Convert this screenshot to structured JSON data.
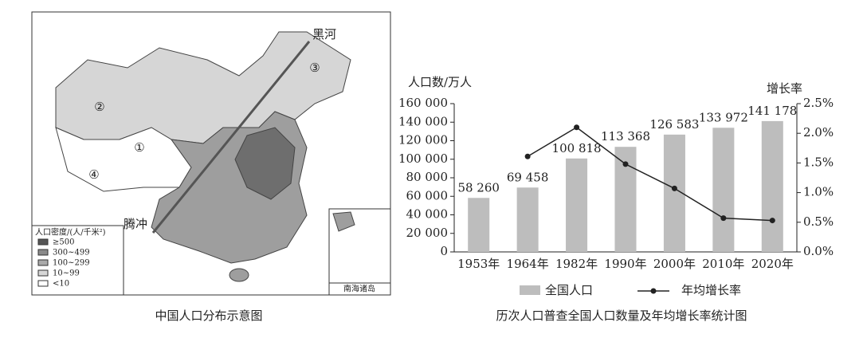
{
  "map": {
    "caption": "中国人口分布示意图",
    "place_north": "黑河",
    "place_south": "腾冲",
    "regions": [
      "①",
      "②",
      "③",
      "④"
    ],
    "legend_title": "人口密度/(人/千米²)",
    "legend_items": [
      "≥500",
      "300~499",
      "100~299",
      "10~99",
      "<10"
    ],
    "inset_label": "南海诸岛"
  },
  "chart_data": {
    "type": "bar",
    "title": "历次人口普查全国人口数量及年均增长率统计图",
    "y_label": "人口数/万人",
    "y2_label": "增长率",
    "categories": [
      "1953年",
      "1964年",
      "1982年",
      "1990年",
      "2000年",
      "2010年",
      "2020年"
    ],
    "series": [
      {
        "name": "全国人口",
        "color": "#bdbdbd",
        "values": [
          58260,
          69458,
          100818,
          113368,
          126583,
          133972,
          141178
        ],
        "value_labels": [
          "58 260",
          "69 458",
          "100 818",
          "113 368",
          "126 583",
          "133 972",
          "141 178"
        ]
      },
      {
        "name": "年均增长率",
        "type": "line",
        "axis": "y2",
        "color": "#222222",
        "values": [
          null,
          1.61,
          2.1,
          1.48,
          1.07,
          0.57,
          0.53
        ]
      }
    ],
    "ylim": [
      0,
      160000
    ],
    "yticks": [
      0,
      {
        "value": 20000,
        "label": "20 000"
      },
      {
        "value": 40000,
        "label": "40 000"
      },
      {
        "value": 60000,
        "label": "60 000"
      },
      {
        "value": 80000,
        "label": "80 000"
      },
      {
        "value": 100000,
        "label": "100 000"
      },
      {
        "value": 120000,
        "label": "120 000"
      },
      {
        "value": 140000,
        "label": "140 000"
      },
      {
        "value": 160000,
        "label": "160 000"
      }
    ],
    "y2lim": [
      0,
      2.5
    ],
    "y2ticks": [
      {
        "value": 0,
        "label": "0.0%"
      },
      {
        "value": 0.5,
        "label": "0.5%"
      },
      {
        "value": 1.0,
        "label": "1.0%"
      },
      {
        "value": 1.5,
        "label": "1.5%"
      },
      {
        "value": 2.0,
        "label": "2.0%"
      },
      {
        "value": 2.5,
        "label": "2.5%"
      }
    ],
    "grid": false
  }
}
